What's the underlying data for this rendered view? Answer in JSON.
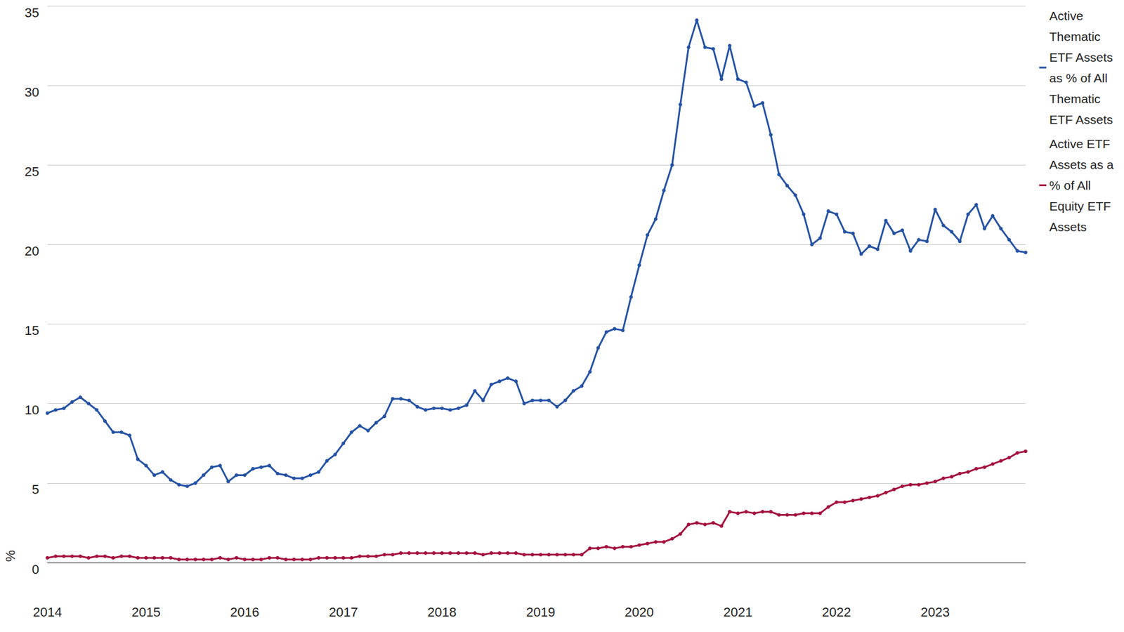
{
  "chart_data": {
    "type": "line",
    "ylabel": "%",
    "categories": [
      "2014",
      null,
      null,
      null,
      null,
      null,
      null,
      null,
      null,
      null,
      null,
      null,
      "2015",
      null,
      null,
      null,
      null,
      null,
      null,
      null,
      null,
      null,
      null,
      null,
      "2016",
      null,
      null,
      null,
      null,
      null,
      null,
      null,
      null,
      null,
      null,
      null,
      "2017",
      null,
      null,
      null,
      null,
      null,
      null,
      null,
      null,
      null,
      null,
      null,
      "2018",
      null,
      null,
      null,
      null,
      null,
      null,
      null,
      null,
      null,
      null,
      null,
      "2019",
      null,
      null,
      null,
      null,
      null,
      null,
      null,
      null,
      null,
      null,
      null,
      "2020",
      null,
      null,
      null,
      null,
      null,
      null,
      null,
      null,
      null,
      null,
      null,
      "2021",
      null,
      null,
      null,
      null,
      null,
      null,
      null,
      null,
      null,
      null,
      null,
      "2022",
      null,
      null,
      null,
      null,
      null,
      null,
      null,
      null,
      null,
      null,
      null,
      "2023",
      null,
      null,
      null,
      null,
      null,
      null,
      null,
      null,
      null,
      null,
      null
    ],
    "series": [
      {
        "name": "Active Thematic ETF Assets as % of All Thematic ETF Assets",
        "color": "#2452a5",
        "marker": "circle",
        "values": [
          9.4,
          9.6,
          9.7,
          10.1,
          10.4,
          10.0,
          9.6,
          8.9,
          8.2,
          8.2,
          8.0,
          6.5,
          6.1,
          5.5,
          5.7,
          5.2,
          4.9,
          4.8,
          5.0,
          5.5,
          6.0,
          6.1,
          5.1,
          5.5,
          5.5,
          5.9,
          6.0,
          6.1,
          5.6,
          5.5,
          5.3,
          5.3,
          5.5,
          5.7,
          6.4,
          6.8,
          7.5,
          8.2,
          8.6,
          8.3,
          8.8,
          9.2,
          10.3,
          10.3,
          10.2,
          9.8,
          9.6,
          9.7,
          9.7,
          9.6,
          9.7,
          9.9,
          10.8,
          10.2,
          11.2,
          11.4,
          11.6,
          11.4,
          10.0,
          10.2,
          10.2,
          10.2,
          9.8,
          10.2,
          10.8,
          11.1,
          12.0,
          13.5,
          14.5,
          14.7,
          14.6,
          16.7,
          18.7,
          20.6,
          21.6,
          23.4,
          25.0,
          28.8,
          32.4,
          34.1,
          32.4,
          32.3,
          30.4,
          32.5,
          30.4,
          30.2,
          28.7,
          28.9,
          26.9,
          24.4,
          23.7,
          23.1,
          21.9,
          20.0,
          20.4,
          22.1,
          21.9,
          20.8,
          20.7,
          19.4,
          19.9,
          19.7,
          21.5,
          20.7,
          20.9,
          19.6,
          20.3,
          20.2,
          22.2,
          21.2,
          20.8,
          20.2,
          21.9,
          22.5,
          21.0,
          21.8,
          21.0,
          20.3,
          19.6,
          19.5
        ]
      },
      {
        "name": "Active ETF Assets as a % of All Equity ETF Assets",
        "color": "#a5123f",
        "marker": "circle",
        "values": [
          0.3,
          0.4,
          0.4,
          0.4,
          0.4,
          0.3,
          0.4,
          0.4,
          0.3,
          0.4,
          0.4,
          0.3,
          0.3,
          0.3,
          0.3,
          0.3,
          0.2,
          0.2,
          0.2,
          0.2,
          0.2,
          0.3,
          0.2,
          0.3,
          0.2,
          0.2,
          0.2,
          0.3,
          0.3,
          0.2,
          0.2,
          0.2,
          0.2,
          0.3,
          0.3,
          0.3,
          0.3,
          0.3,
          0.4,
          0.4,
          0.4,
          0.5,
          0.5,
          0.6,
          0.6,
          0.6,
          0.6,
          0.6,
          0.6,
          0.6,
          0.6,
          0.6,
          0.6,
          0.5,
          0.6,
          0.6,
          0.6,
          0.6,
          0.5,
          0.5,
          0.5,
          0.5,
          0.5,
          0.5,
          0.5,
          0.5,
          0.9,
          0.9,
          1.0,
          0.9,
          1.0,
          1.0,
          1.1,
          1.2,
          1.3,
          1.3,
          1.5,
          1.8,
          2.4,
          2.5,
          2.4,
          2.5,
          2.3,
          3.2,
          3.1,
          3.2,
          3.1,
          3.2,
          3.2,
          3.0,
          3.0,
          3.0,
          3.1,
          3.1,
          3.1,
          3.5,
          3.8,
          3.8,
          3.9,
          4.0,
          4.1,
          4.2,
          4.4,
          4.6,
          4.8,
          4.9,
          4.9,
          5.0,
          5.1,
          5.3,
          5.4,
          5.6,
          5.7,
          5.9,
          6.0,
          6.2,
          6.4,
          6.6,
          6.9,
          7.0
        ]
      }
    ],
    "ylim": [
      0,
      35
    ],
    "yticks": [
      0,
      5,
      10,
      15,
      20,
      25,
      30,
      35
    ],
    "grid": true,
    "legend": "right"
  }
}
